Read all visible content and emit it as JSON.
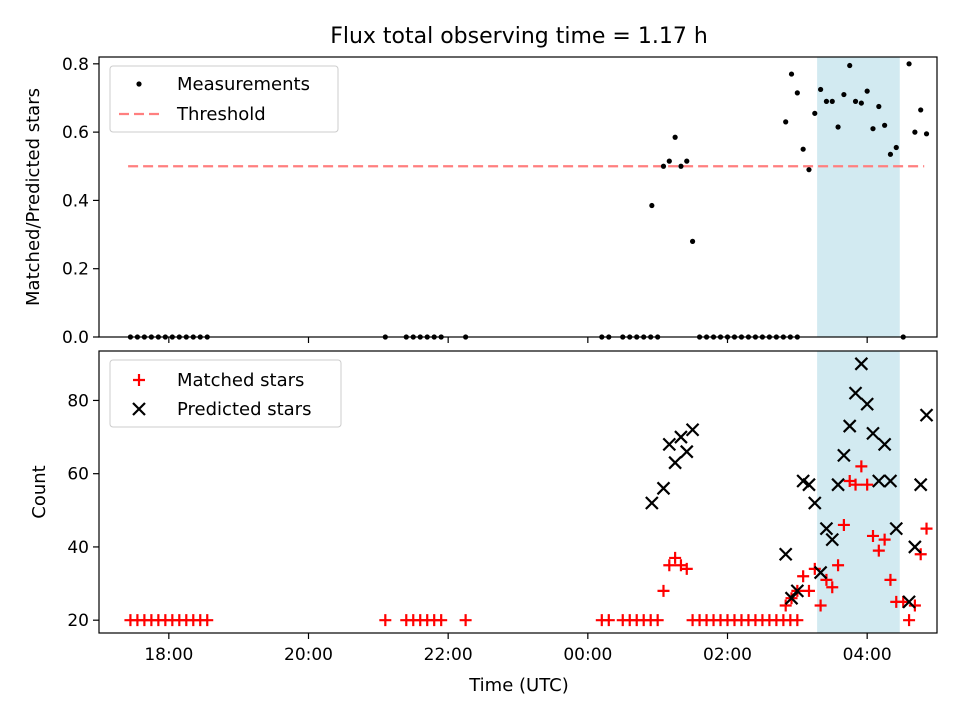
{
  "title": "Flux total observing time = 1.17 h",
  "xlabel": "Time (UTC)",
  "x_tick_labels": [
    "18:00",
    "20:00",
    "22:00",
    "00:00",
    "02:00",
    "04:00"
  ],
  "highlight": {
    "x_range": [
      "2024-01-02T03:17",
      "2024-01-02T04:28"
    ],
    "color": "#add8e6"
  },
  "chart_data": [
    {
      "type": "scatter",
      "ylabel": "Matched/Predicted stars",
      "ylim": [
        0,
        0.82
      ],
      "y_ticks": [
        0.0,
        0.2,
        0.4,
        0.6,
        0.8
      ],
      "y_tick_labels": [
        "0.0",
        "0.2",
        "0.4",
        "0.6",
        "0.8"
      ],
      "legend": {
        "placement": "top-left",
        "entries": [
          "Measurements",
          "Threshold"
        ]
      },
      "threshold": {
        "name": "Threshold",
        "value": 0.5,
        "x_range": [
          "2024-01-01T17:25",
          "2024-01-02T04:49"
        ],
        "color": "#ff7f7f",
        "style": "dashed"
      },
      "series": [
        {
          "name": "Measurements",
          "color": "#000000",
          "x": [
            "2024-01-01T17:27",
            "2024-01-01T17:33",
            "2024-01-01T17:39",
            "2024-01-01T17:45",
            "2024-01-01T17:51",
            "2024-01-01T17:57",
            "2024-01-01T18:03",
            "2024-01-01T18:09",
            "2024-01-01T18:15",
            "2024-01-01T18:21",
            "2024-01-01T18:27",
            "2024-01-01T18:33",
            "2024-01-01T21:06",
            "2024-01-01T21:24",
            "2024-01-01T21:30",
            "2024-01-01T21:36",
            "2024-01-01T21:42",
            "2024-01-01T21:48",
            "2024-01-01T21:54",
            "2024-01-01T22:15",
            "2024-01-02T00:12",
            "2024-01-02T00:18",
            "2024-01-02T00:30",
            "2024-01-02T00:36",
            "2024-01-02T00:42",
            "2024-01-02T00:48",
            "2024-01-02T00:54",
            "2024-01-02T01:00",
            "2024-01-02T01:36",
            "2024-01-02T01:42",
            "2024-01-02T01:48",
            "2024-01-02T01:54",
            "2024-01-02T02:00",
            "2024-01-02T02:06",
            "2024-01-02T02:12",
            "2024-01-02T02:18",
            "2024-01-02T02:24",
            "2024-01-02T02:30",
            "2024-01-02T02:36",
            "2024-01-02T02:42",
            "2024-01-02T02:48",
            "2024-01-02T02:54",
            "2024-01-02T03:00",
            "2024-01-02T04:31",
            "2024-01-02T00:55",
            "2024-01-02T01:05",
            "2024-01-02T01:10",
            "2024-01-02T01:15",
            "2024-01-02T01:20",
            "2024-01-02T01:25",
            "2024-01-02T01:30",
            "2024-01-02T02:50",
            "2024-01-02T02:55",
            "2024-01-02T03:00",
            "2024-01-02T03:05",
            "2024-01-02T03:10",
            "2024-01-02T03:15",
            "2024-01-02T03:20",
            "2024-01-02T03:25",
            "2024-01-02T03:30",
            "2024-01-02T03:35",
            "2024-01-02T03:40",
            "2024-01-02T03:45",
            "2024-01-02T03:50",
            "2024-01-02T03:55",
            "2024-01-02T04:00",
            "2024-01-02T04:05",
            "2024-01-02T04:10",
            "2024-01-02T04:15",
            "2024-01-02T04:20",
            "2024-01-02T04:25",
            "2024-01-02T04:36",
            "2024-01-02T04:41",
            "2024-01-02T04:46",
            "2024-01-02T04:51"
          ],
          "y": [
            0,
            0,
            0,
            0,
            0,
            0,
            0,
            0,
            0,
            0,
            0,
            0,
            0,
            0,
            0,
            0,
            0,
            0,
            0,
            0,
            0,
            0,
            0,
            0,
            0,
            0,
            0,
            0,
            0,
            0,
            0,
            0,
            0,
            0,
            0,
            0,
            0,
            0,
            0,
            0,
            0,
            0,
            0,
            0,
            0.385,
            0.5,
            0.515,
            0.585,
            0.5,
            0.515,
            0.28,
            0.63,
            0.77,
            0.715,
            0.55,
            0.49,
            0.655,
            0.725,
            0.69,
            0.69,
            0.615,
            0.71,
            0.795,
            0.69,
            0.685,
            0.72,
            0.61,
            0.675,
            0.62,
            0.535,
            0.555,
            0.8,
            0.6,
            0.665,
            0.595
          ]
        }
      ]
    },
    {
      "type": "scatter",
      "ylabel": "Count",
      "ylim": [
        16.5,
        93.5
      ],
      "y_ticks": [
        20,
        40,
        60,
        80
      ],
      "y_tick_labels": [
        "20",
        "40",
        "60",
        "80"
      ],
      "legend": {
        "placement": "top-left",
        "entries": [
          "Matched stars",
          "Predicted stars"
        ]
      },
      "series": [
        {
          "name": "Matched stars",
          "color": "#ff0000",
          "marker": "plus",
          "x": [
            "2024-01-01T17:27",
            "2024-01-01T17:33",
            "2024-01-01T17:39",
            "2024-01-01T17:45",
            "2024-01-01T17:51",
            "2024-01-01T17:57",
            "2024-01-01T18:03",
            "2024-01-01T18:09",
            "2024-01-01T18:15",
            "2024-01-01T18:21",
            "2024-01-01T18:27",
            "2024-01-01T18:33",
            "2024-01-01T21:06",
            "2024-01-01T21:24",
            "2024-01-01T21:30",
            "2024-01-01T21:36",
            "2024-01-01T21:42",
            "2024-01-01T21:48",
            "2024-01-01T21:54",
            "2024-01-01T22:15",
            "2024-01-02T00:12",
            "2024-01-02T00:18",
            "2024-01-02T00:30",
            "2024-01-02T00:36",
            "2024-01-02T00:42",
            "2024-01-02T00:48",
            "2024-01-02T00:54",
            "2024-01-02T01:00",
            "2024-01-02T01:36",
            "2024-01-02T01:42",
            "2024-01-02T01:48",
            "2024-01-02T01:54",
            "2024-01-02T02:00",
            "2024-01-02T02:06",
            "2024-01-02T02:12",
            "2024-01-02T02:18",
            "2024-01-02T02:24",
            "2024-01-02T02:30",
            "2024-01-02T02:36",
            "2024-01-02T02:42",
            "2024-01-02T02:48",
            "2024-01-02T02:54",
            "2024-01-02T03:00",
            "2024-01-02T01:05",
            "2024-01-02T01:10",
            "2024-01-02T01:15",
            "2024-01-02T01:20",
            "2024-01-02T01:25",
            "2024-01-02T01:30",
            "2024-01-02T02:50",
            "2024-01-02T02:55",
            "2024-01-02T03:00",
            "2024-01-02T03:05",
            "2024-01-02T03:10",
            "2024-01-02T03:15",
            "2024-01-02T03:20",
            "2024-01-02T03:25",
            "2024-01-02T03:30",
            "2024-01-02T03:35",
            "2024-01-02T03:40",
            "2024-01-02T03:45",
            "2024-01-02T03:50",
            "2024-01-02T03:55",
            "2024-01-02T04:00",
            "2024-01-02T04:05",
            "2024-01-02T04:10",
            "2024-01-02T04:15",
            "2024-01-02T04:20",
            "2024-01-02T04:25",
            "2024-01-02T04:31",
            "2024-01-02T04:36",
            "2024-01-02T04:41",
            "2024-01-02T04:46",
            "2024-01-02T04:51"
          ],
          "y": [
            20,
            20,
            20,
            20,
            20,
            20,
            20,
            20,
            20,
            20,
            20,
            20,
            20,
            20,
            20,
            20,
            20,
            20,
            20,
            20,
            20,
            20,
            20,
            20,
            20,
            20,
            20,
            20,
            20,
            20,
            20,
            20,
            20,
            20,
            20,
            20,
            20,
            20,
            20,
            20,
            20,
            20,
            20,
            28,
            35,
            37,
            35,
            34,
            20,
            24,
            26,
            28,
            32,
            28,
            34,
            24,
            31,
            29,
            35,
            46,
            58,
            57,
            62,
            57,
            43,
            39,
            42,
            31,
            25,
            25,
            20,
            24,
            38,
            45
          ]
        },
        {
          "name": "Predicted stars",
          "color": "#000000",
          "marker": "x",
          "x": [
            "2024-01-02T00:55",
            "2024-01-02T01:05",
            "2024-01-02T01:10",
            "2024-01-02T01:15",
            "2024-01-02T01:20",
            "2024-01-02T01:25",
            "2024-01-02T01:30",
            "2024-01-02T02:50",
            "2024-01-02T02:55",
            "2024-01-02T03:00",
            "2024-01-02T03:05",
            "2024-01-02T03:10",
            "2024-01-02T03:15",
            "2024-01-02T03:20",
            "2024-01-02T03:25",
            "2024-01-02T03:30",
            "2024-01-02T03:35",
            "2024-01-02T03:40",
            "2024-01-02T03:45",
            "2024-01-02T03:50",
            "2024-01-02T03:55",
            "2024-01-02T04:00",
            "2024-01-02T04:05",
            "2024-01-02T04:10",
            "2024-01-02T04:15",
            "2024-01-02T04:20",
            "2024-01-02T04:25",
            "2024-01-02T04:36",
            "2024-01-02T04:41",
            "2024-01-02T04:46",
            "2024-01-02T04:51"
          ],
          "y": [
            52,
            56,
            68,
            63,
            70,
            66,
            72,
            38,
            26,
            28,
            58,
            57,
            52,
            33,
            45,
            42,
            57,
            65,
            73,
            82,
            90,
            79,
            71,
            58,
            68,
            58,
            45,
            25,
            40,
            57,
            76
          ]
        }
      ]
    }
  ]
}
